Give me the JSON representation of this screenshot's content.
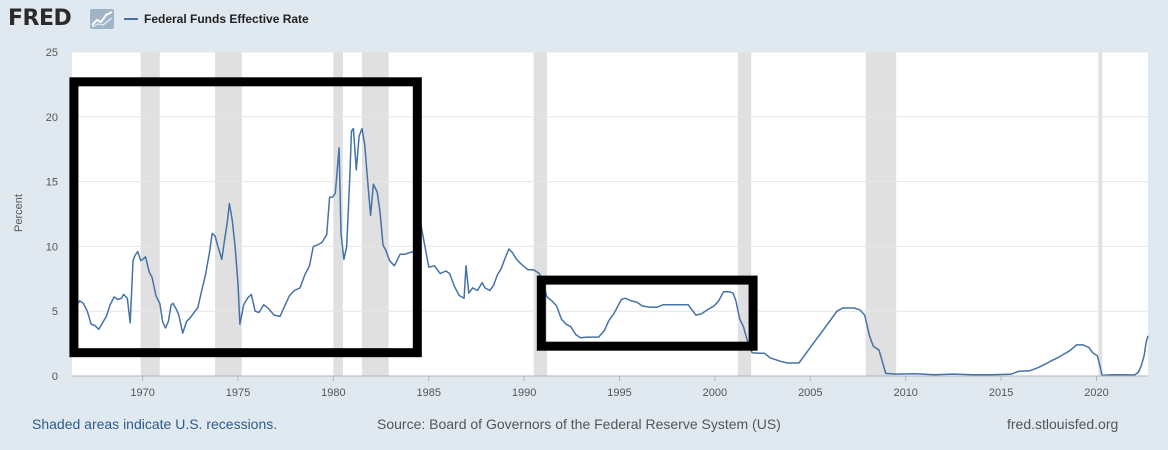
{
  "header": {
    "logo_text": "FRED",
    "legend_label": "Federal Funds Effective Rate"
  },
  "footer": {
    "recessions_note": "Shaded areas indicate U.S. recessions.",
    "source": "Source: Board of Governors of the Federal Reserve System (US)",
    "site": "fred.stlouisfed.org"
  },
  "colors": {
    "series": "#4572a7",
    "recession_shade": "#e0e0e0",
    "page_background": "#e1e9f0",
    "plot_background": "#ffffff",
    "annotation_box": "#000000"
  },
  "icons": {
    "logo_graph": "line-graph-icon"
  },
  "chart_data": {
    "type": "line",
    "title": "",
    "xlabel": "",
    "ylabel": "Percent",
    "xlim": [
      1966.3,
      2022.7
    ],
    "ylim": [
      0,
      25
    ],
    "x_ticks": [
      1970,
      1975,
      1980,
      1985,
      1990,
      1995,
      2000,
      2005,
      2010,
      2015,
      2020
    ],
    "y_ticks": [
      0,
      5,
      10,
      15,
      20,
      25
    ],
    "grid": "horizontal",
    "legend": "top-left",
    "recessions": [
      [
        1969.9,
        1970.9
      ],
      [
        1973.8,
        1975.2
      ],
      [
        1980.0,
        1980.5
      ],
      [
        1981.5,
        1982.9
      ],
      [
        1990.5,
        1991.2
      ],
      [
        2001.2,
        2001.9
      ],
      [
        2007.9,
        2009.5
      ],
      [
        2020.1,
        2020.3
      ]
    ],
    "annotations": [
      {
        "type": "box",
        "x_range": [
          1966.4,
          1984.4
        ],
        "y_range": [
          1.8,
          22.7
        ]
      },
      {
        "type": "box",
        "x_range": [
          1990.9,
          2002.0
        ],
        "y_range": [
          2.3,
          7.4
        ]
      }
    ],
    "series": [
      {
        "name": "Federal Funds Effective Rate",
        "points": [
          [
            1966.3,
            4.6
          ],
          [
            1966.5,
            5.3
          ],
          [
            1966.7,
            5.8
          ],
          [
            1966.9,
            5.6
          ],
          [
            1967.1,
            5.0
          ],
          [
            1967.3,
            4.0
          ],
          [
            1967.5,
            3.9
          ],
          [
            1967.7,
            3.6
          ],
          [
            1967.9,
            4.1
          ],
          [
            1968.1,
            4.6
          ],
          [
            1968.3,
            5.5
          ],
          [
            1968.5,
            6.1
          ],
          [
            1968.7,
            5.9
          ],
          [
            1968.9,
            6.0
          ],
          [
            1969.0,
            6.3
          ],
          [
            1969.2,
            6.0
          ],
          [
            1969.35,
            4.1
          ],
          [
            1969.5,
            8.9
          ],
          [
            1969.6,
            9.3
          ],
          [
            1969.75,
            9.6
          ],
          [
            1969.9,
            8.9
          ],
          [
            1970.0,
            9.0
          ],
          [
            1970.15,
            9.2
          ],
          [
            1970.35,
            8.0
          ],
          [
            1970.5,
            7.6
          ],
          [
            1970.7,
            6.2
          ],
          [
            1970.9,
            5.6
          ],
          [
            1971.05,
            4.2
          ],
          [
            1971.2,
            3.7
          ],
          [
            1971.35,
            4.2
          ],
          [
            1971.5,
            5.5
          ],
          [
            1971.6,
            5.6
          ],
          [
            1971.75,
            5.2
          ],
          [
            1971.9,
            4.7
          ],
          [
            1972.1,
            3.3
          ],
          [
            1972.3,
            4.2
          ],
          [
            1972.5,
            4.5
          ],
          [
            1972.7,
            4.9
          ],
          [
            1972.9,
            5.3
          ],
          [
            1973.1,
            6.6
          ],
          [
            1973.3,
            7.8
          ],
          [
            1973.5,
            9.5
          ],
          [
            1973.65,
            11.0
          ],
          [
            1973.8,
            10.8
          ],
          [
            1973.95,
            10.0
          ],
          [
            1974.15,
            9.0
          ],
          [
            1974.3,
            10.5
          ],
          [
            1974.45,
            12.0
          ],
          [
            1974.55,
            13.3
          ],
          [
            1974.7,
            12.0
          ],
          [
            1974.85,
            10.0
          ],
          [
            1975.0,
            7.1
          ],
          [
            1975.1,
            4.0
          ],
          [
            1975.3,
            5.5
          ],
          [
            1975.5,
            6.0
          ],
          [
            1975.7,
            6.3
          ],
          [
            1975.9,
            5.0
          ],
          [
            1976.1,
            4.9
          ],
          [
            1976.35,
            5.5
          ],
          [
            1976.6,
            5.2
          ],
          [
            1976.9,
            4.7
          ],
          [
            1977.2,
            4.6
          ],
          [
            1977.45,
            5.4
          ],
          [
            1977.7,
            6.2
          ],
          [
            1977.95,
            6.6
          ],
          [
            1978.25,
            6.8
          ],
          [
            1978.5,
            7.8
          ],
          [
            1978.75,
            8.5
          ],
          [
            1978.95,
            10.0
          ],
          [
            1979.15,
            10.1
          ],
          [
            1979.4,
            10.3
          ],
          [
            1979.65,
            10.9
          ],
          [
            1979.8,
            13.8
          ],
          [
            1979.95,
            13.8
          ],
          [
            1980.1,
            14.1
          ],
          [
            1980.3,
            17.6
          ],
          [
            1980.4,
            11.0
          ],
          [
            1980.55,
            9.0
          ],
          [
            1980.7,
            10.0
          ],
          [
            1980.85,
            15.0
          ],
          [
            1980.95,
            18.9
          ],
          [
            1981.05,
            19.1
          ],
          [
            1981.2,
            15.9
          ],
          [
            1981.35,
            18.5
          ],
          [
            1981.5,
            19.1
          ],
          [
            1981.65,
            17.8
          ],
          [
            1981.8,
            15.0
          ],
          [
            1981.95,
            12.4
          ],
          [
            1982.1,
            14.8
          ],
          [
            1982.3,
            14.2
          ],
          [
            1982.45,
            12.6
          ],
          [
            1982.6,
            10.1
          ],
          [
            1982.75,
            9.7
          ],
          [
            1982.95,
            8.9
          ],
          [
            1983.2,
            8.5
          ],
          [
            1983.5,
            9.4
          ],
          [
            1983.75,
            9.4
          ],
          [
            1983.95,
            9.5
          ],
          [
            1984.2,
            9.6
          ],
          [
            1984.4,
            10.5
          ],
          [
            1984.6,
            11.6
          ],
          [
            1984.8,
            10.0
          ],
          [
            1985.0,
            8.4
          ],
          [
            1985.3,
            8.5
          ],
          [
            1985.6,
            7.9
          ],
          [
            1985.9,
            8.1
          ],
          [
            1986.1,
            7.9
          ],
          [
            1986.35,
            6.9
          ],
          [
            1986.6,
            6.2
          ],
          [
            1986.85,
            6.0
          ],
          [
            1986.95,
            8.5
          ],
          [
            1987.1,
            6.4
          ],
          [
            1987.3,
            6.8
          ],
          [
            1987.55,
            6.6
          ],
          [
            1987.8,
            7.2
          ],
          [
            1987.95,
            6.8
          ],
          [
            1988.2,
            6.6
          ],
          [
            1988.4,
            7.0
          ],
          [
            1988.6,
            7.8
          ],
          [
            1988.8,
            8.3
          ],
          [
            1989.0,
            9.1
          ],
          [
            1989.2,
            9.8
          ],
          [
            1989.4,
            9.5
          ],
          [
            1989.6,
            9.0
          ],
          [
            1989.8,
            8.7
          ],
          [
            1989.95,
            8.5
          ],
          [
            1990.2,
            8.2
          ],
          [
            1990.5,
            8.2
          ],
          [
            1990.8,
            7.9
          ],
          [
            1990.95,
            7.3
          ],
          [
            1991.2,
            6.1
          ],
          [
            1991.45,
            5.8
          ],
          [
            1991.7,
            5.4
          ],
          [
            1991.95,
            4.4
          ],
          [
            1992.2,
            4.0
          ],
          [
            1992.45,
            3.8
          ],
          [
            1992.7,
            3.2
          ],
          [
            1992.95,
            2.95
          ],
          [
            1993.3,
            3.0
          ],
          [
            1993.6,
            3.0
          ],
          [
            1993.9,
            3.0
          ],
          [
            1994.2,
            3.5
          ],
          [
            1994.45,
            4.3
          ],
          [
            1994.7,
            4.8
          ],
          [
            1994.95,
            5.5
          ],
          [
            1995.1,
            5.9
          ],
          [
            1995.3,
            6.0
          ],
          [
            1995.6,
            5.8
          ],
          [
            1995.9,
            5.7
          ],
          [
            1996.2,
            5.4
          ],
          [
            1996.6,
            5.3
          ],
          [
            1996.95,
            5.3
          ],
          [
            1997.3,
            5.5
          ],
          [
            1997.6,
            5.5
          ],
          [
            1997.95,
            5.5
          ],
          [
            1998.3,
            5.5
          ],
          [
            1998.6,
            5.5
          ],
          [
            1998.8,
            5.1
          ],
          [
            1999.0,
            4.7
          ],
          [
            1999.3,
            4.8
          ],
          [
            1999.6,
            5.1
          ],
          [
            1999.95,
            5.4
          ],
          [
            2000.2,
            5.8
          ],
          [
            2000.45,
            6.5
          ],
          [
            2000.75,
            6.5
          ],
          [
            2000.95,
            6.4
          ],
          [
            2001.1,
            5.8
          ],
          [
            2001.3,
            4.4
          ],
          [
            2001.5,
            3.8
          ],
          [
            2001.7,
            2.7
          ],
          [
            2001.95,
            1.8
          ],
          [
            2002.3,
            1.75
          ],
          [
            2002.6,
            1.75
          ],
          [
            2002.9,
            1.4
          ],
          [
            2003.2,
            1.25
          ],
          [
            2003.5,
            1.1
          ],
          [
            2003.8,
            1.0
          ],
          [
            2004.1,
            1.0
          ],
          [
            2004.4,
            1.0
          ],
          [
            2004.6,
            1.4
          ],
          [
            2004.9,
            2.0
          ],
          [
            2005.2,
            2.6
          ],
          [
            2005.5,
            3.2
          ],
          [
            2005.8,
            3.8
          ],
          [
            2006.1,
            4.4
          ],
          [
            2006.4,
            5.0
          ],
          [
            2006.7,
            5.25
          ],
          [
            2007.0,
            5.25
          ],
          [
            2007.3,
            5.25
          ],
          [
            2007.6,
            5.1
          ],
          [
            2007.85,
            4.7
          ],
          [
            2008.1,
            3.1
          ],
          [
            2008.3,
            2.3
          ],
          [
            2008.6,
            2.0
          ],
          [
            2008.8,
            1.0
          ],
          [
            2008.95,
            0.2
          ],
          [
            2009.5,
            0.15
          ],
          [
            2010.5,
            0.18
          ],
          [
            2011.5,
            0.1
          ],
          [
            2012.5,
            0.15
          ],
          [
            2013.5,
            0.09
          ],
          [
            2014.5,
            0.09
          ],
          [
            2015.5,
            0.13
          ],
          [
            2015.95,
            0.37
          ],
          [
            2016.5,
            0.4
          ],
          [
            2016.95,
            0.65
          ],
          [
            2017.3,
            0.9
          ],
          [
            2017.6,
            1.15
          ],
          [
            2017.95,
            1.4
          ],
          [
            2018.3,
            1.7
          ],
          [
            2018.6,
            1.95
          ],
          [
            2018.95,
            2.4
          ],
          [
            2019.3,
            2.4
          ],
          [
            2019.6,
            2.2
          ],
          [
            2019.8,
            1.8
          ],
          [
            2020.05,
            1.55
          ],
          [
            2020.2,
            0.65
          ],
          [
            2020.3,
            0.05
          ],
          [
            2020.8,
            0.09
          ],
          [
            2021.5,
            0.09
          ],
          [
            2022.0,
            0.08
          ],
          [
            2022.2,
            0.3
          ],
          [
            2022.35,
            0.8
          ],
          [
            2022.5,
            1.6
          ],
          [
            2022.6,
            2.6
          ],
          [
            2022.7,
            3.1
          ]
        ]
      }
    ]
  }
}
